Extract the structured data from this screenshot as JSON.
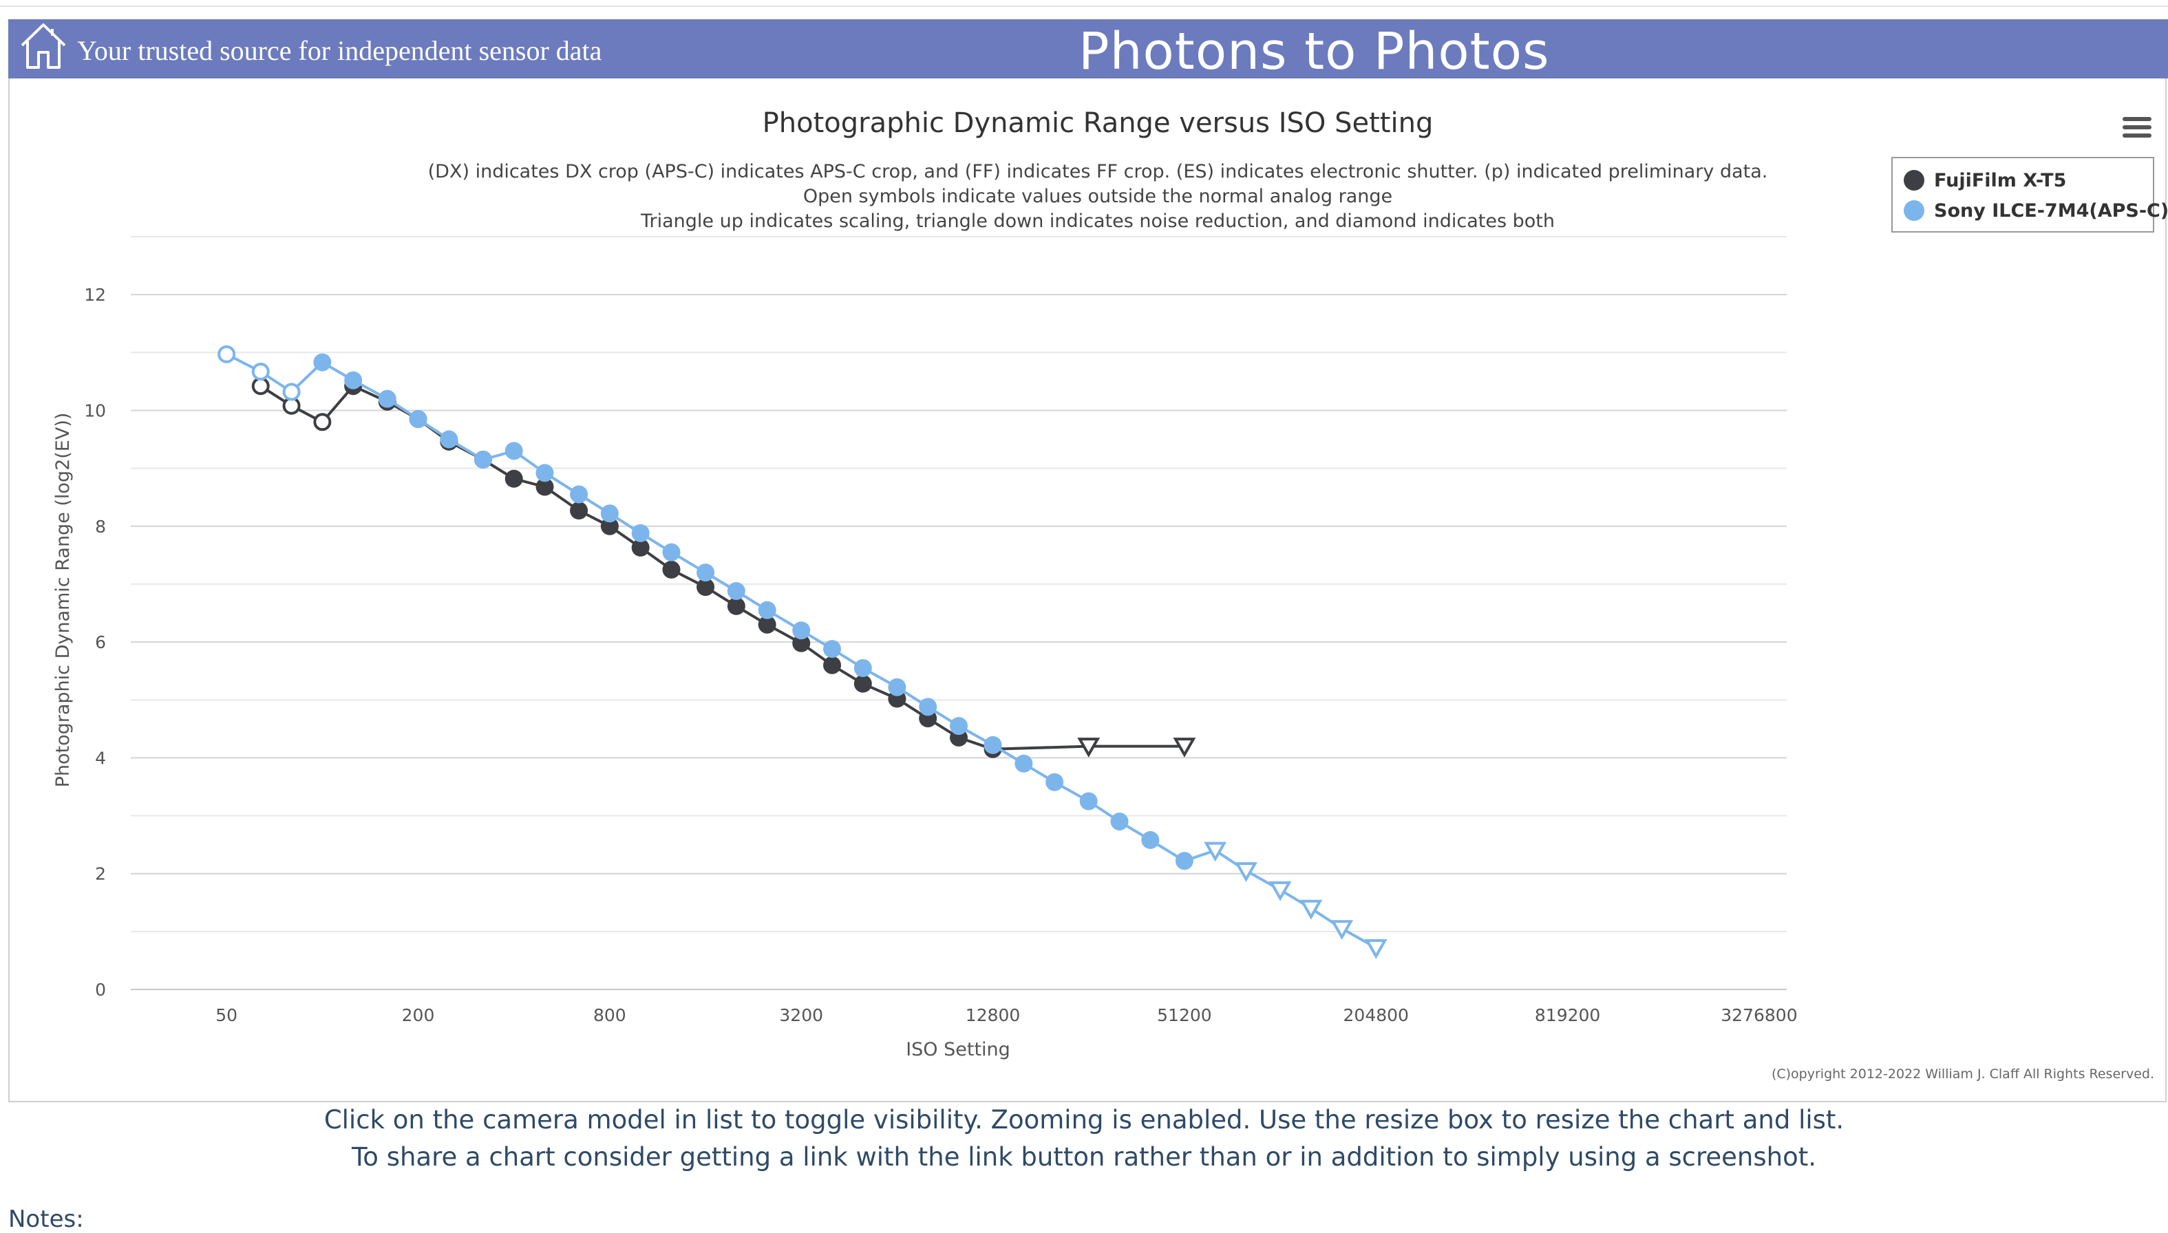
{
  "header": {
    "tagline": "Your trusted source for independent sensor data",
    "site_title": "Photons to Photos",
    "background": "#6b7bbd",
    "icon": "home-icon"
  },
  "chart_data": {
    "type": "line",
    "title": "Photographic Dynamic Range versus ISO Setting",
    "subtitle_lines": [
      "(DX) indicates DX crop (APS-C) indicates APS-C crop, and (FF) indicates FF crop. (ES) indicates electronic shutter. (p) indicated preliminary data.",
      "Open symbols indicate values outside the normal analog range",
      "Triangle up indicates scaling, triangle down indicates noise reduction, and diamond indicates both"
    ],
    "xlabel": "ISO Setting",
    "ylabel": "Photographic Dynamic Range (log2(EV))",
    "x_scale": "log2",
    "xlim": [
      25,
      4000000
    ],
    "ylim": [
      0,
      13
    ],
    "x_ticks": [
      "50",
      "200",
      "800",
      "3200",
      "12800",
      "51200",
      "204800",
      "819200",
      "3276800"
    ],
    "y_ticks": [
      "0",
      "2",
      "4",
      "6",
      "8",
      "10",
      "12"
    ],
    "grid": true,
    "legend_position": "top-right",
    "series": [
      {
        "name": "FujiFilm X-T5",
        "color": "#3d3f44",
        "points": [
          {
            "iso": 64,
            "dr": 10.42,
            "marker": "open"
          },
          {
            "iso": 80,
            "dr": 10.08,
            "marker": "open"
          },
          {
            "iso": 100,
            "dr": 9.8,
            "marker": "open"
          },
          {
            "iso": 125,
            "dr": 10.42,
            "marker": "filled"
          },
          {
            "iso": 160,
            "dr": 10.15,
            "marker": "filled"
          },
          {
            "iso": 200,
            "dr": 9.85,
            "marker": "filled"
          },
          {
            "iso": 250,
            "dr": 9.46,
            "marker": "filled"
          },
          {
            "iso": 320,
            "dr": 9.15,
            "marker": "filled"
          },
          {
            "iso": 400,
            "dr": 8.82,
            "marker": "filled"
          },
          {
            "iso": 500,
            "dr": 8.68,
            "marker": "filled"
          },
          {
            "iso": 640,
            "dr": 8.27,
            "marker": "filled"
          },
          {
            "iso": 800,
            "dr": 8.0,
            "marker": "filled"
          },
          {
            "iso": 1000,
            "dr": 7.63,
            "marker": "filled"
          },
          {
            "iso": 1250,
            "dr": 7.25,
            "marker": "filled"
          },
          {
            "iso": 1600,
            "dr": 6.95,
            "marker": "filled"
          },
          {
            "iso": 2000,
            "dr": 6.62,
            "marker": "filled"
          },
          {
            "iso": 2500,
            "dr": 6.3,
            "marker": "filled"
          },
          {
            "iso": 3200,
            "dr": 5.98,
            "marker": "filled"
          },
          {
            "iso": 4000,
            "dr": 5.6,
            "marker": "filled"
          },
          {
            "iso": 5000,
            "dr": 5.28,
            "marker": "filled"
          },
          {
            "iso": 6400,
            "dr": 5.02,
            "marker": "filled"
          },
          {
            "iso": 8000,
            "dr": 4.68,
            "marker": "filled"
          },
          {
            "iso": 10000,
            "dr": 4.35,
            "marker": "filled"
          },
          {
            "iso": 12800,
            "dr": 4.15,
            "marker": "filled"
          },
          {
            "iso": 25600,
            "dr": 4.2,
            "marker": "triangle-down"
          },
          {
            "iso": 51200,
            "dr": 4.2,
            "marker": "triangle-down"
          }
        ]
      },
      {
        "name": "Sony ILCE-7M4(APS-C)",
        "color": "#7cb5ec",
        "points": [
          {
            "iso": 50,
            "dr": 10.97,
            "marker": "open"
          },
          {
            "iso": 64,
            "dr": 10.67,
            "marker": "open"
          },
          {
            "iso": 80,
            "dr": 10.32,
            "marker": "open"
          },
          {
            "iso": 100,
            "dr": 10.83,
            "marker": "filled"
          },
          {
            "iso": 125,
            "dr": 10.52,
            "marker": "filled"
          },
          {
            "iso": 160,
            "dr": 10.2,
            "marker": "filled"
          },
          {
            "iso": 200,
            "dr": 9.85,
            "marker": "filled"
          },
          {
            "iso": 250,
            "dr": 9.5,
            "marker": "filled"
          },
          {
            "iso": 320,
            "dr": 9.15,
            "marker": "filled"
          },
          {
            "iso": 400,
            "dr": 9.3,
            "marker": "filled"
          },
          {
            "iso": 500,
            "dr": 8.92,
            "marker": "filled"
          },
          {
            "iso": 640,
            "dr": 8.55,
            "marker": "filled"
          },
          {
            "iso": 800,
            "dr": 8.22,
            "marker": "filled"
          },
          {
            "iso": 1000,
            "dr": 7.88,
            "marker": "filled"
          },
          {
            "iso": 1250,
            "dr": 7.55,
            "marker": "filled"
          },
          {
            "iso": 1600,
            "dr": 7.2,
            "marker": "filled"
          },
          {
            "iso": 2000,
            "dr": 6.88,
            "marker": "filled"
          },
          {
            "iso": 2500,
            "dr": 6.55,
            "marker": "filled"
          },
          {
            "iso": 3200,
            "dr": 6.2,
            "marker": "filled"
          },
          {
            "iso": 4000,
            "dr": 5.88,
            "marker": "filled"
          },
          {
            "iso": 5000,
            "dr": 5.55,
            "marker": "filled"
          },
          {
            "iso": 6400,
            "dr": 5.22,
            "marker": "filled"
          },
          {
            "iso": 8000,
            "dr": 4.88,
            "marker": "filled"
          },
          {
            "iso": 10000,
            "dr": 4.55,
            "marker": "filled"
          },
          {
            "iso": 12800,
            "dr": 4.22,
            "marker": "filled"
          },
          {
            "iso": 16000,
            "dr": 3.9,
            "marker": "filled"
          },
          {
            "iso": 20000,
            "dr": 3.58,
            "marker": "filled"
          },
          {
            "iso": 25600,
            "dr": 3.25,
            "marker": "filled"
          },
          {
            "iso": 32000,
            "dr": 2.9,
            "marker": "filled"
          },
          {
            "iso": 40000,
            "dr": 2.58,
            "marker": "filled"
          },
          {
            "iso": 51200,
            "dr": 2.22,
            "marker": "filled"
          },
          {
            "iso": 64000,
            "dr": 2.4,
            "marker": "triangle-down"
          },
          {
            "iso": 80000,
            "dr": 2.05,
            "marker": "triangle-down"
          },
          {
            "iso": 102400,
            "dr": 1.72,
            "marker": "triangle-down"
          },
          {
            "iso": 128000,
            "dr": 1.4,
            "marker": "triangle-down"
          },
          {
            "iso": 160000,
            "dr": 1.05,
            "marker": "triangle-down"
          },
          {
            "iso": 204800,
            "dr": 0.72,
            "marker": "triangle-down"
          }
        ]
      }
    ],
    "copyright": "(C)opyright 2012-2022 William J. Claff All Rights Reserved."
  },
  "toolbar": {
    "menu_icon": "hamburger-menu-icon"
  },
  "footer": {
    "line1": "Click on the camera model in list to toggle visibility. Zooming is enabled. Use the resize box to resize the chart and list.",
    "line2": "To share a chart consider getting a link with the link button rather than or in addition to simply using a screenshot.",
    "notes_label": "Notes:"
  }
}
